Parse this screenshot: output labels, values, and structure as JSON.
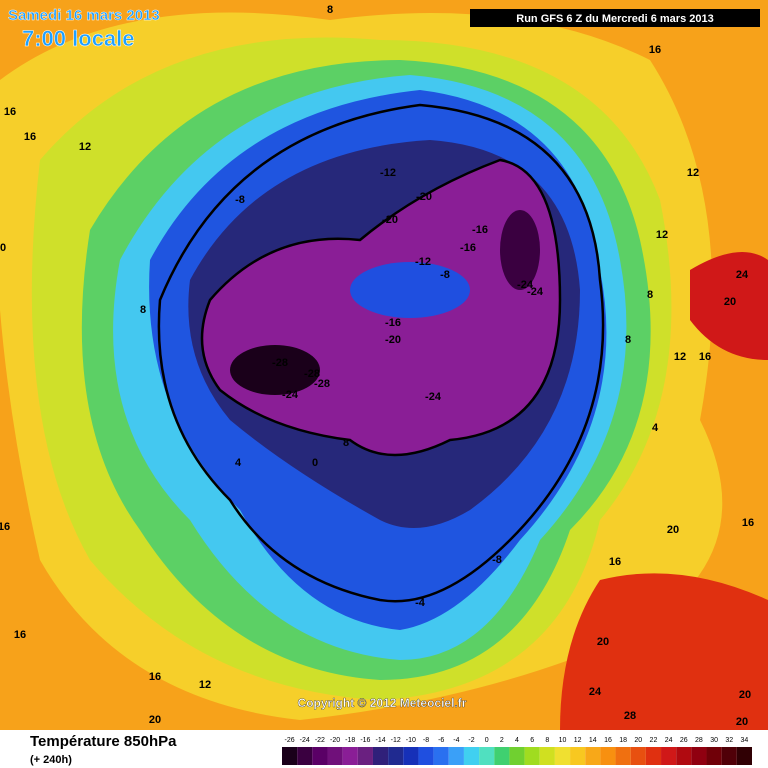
{
  "header": {
    "date": "Samedi 16 mars 2013",
    "time": "7:00 locale",
    "run": "Run GFS 6 Z du Mercredi 6 mars 2013"
  },
  "map_labels": [
    "8",
    "16",
    "16",
    "12",
    "-8",
    "-12",
    "-20",
    "-20",
    "-16",
    "-16",
    "-12",
    "-8",
    "-24",
    "-24",
    "-16",
    "-20",
    "-28",
    "-28",
    "-28",
    "-24",
    "-24",
    "12",
    "12",
    "24",
    "20",
    "8",
    "8",
    "12",
    "16",
    "4",
    "4",
    "0",
    "8",
    "-8",
    "-4",
    "20",
    "16",
    "16",
    "20",
    "24",
    "28",
    "20",
    "20",
    "16",
    "16",
    "16",
    "12",
    "20",
    "8",
    "0",
    "16"
  ],
  "copyright": "Copyright © 2012 Meteociel.fr",
  "footer": {
    "title": "Température 850hPa",
    "subtitle": "(+ 240h)"
  },
  "scale": {
    "labels": [
      "-26",
      "-24",
      "-22",
      "-20",
      "-18",
      "-16",
      "-14",
      "-12",
      "-10",
      "-8",
      "-6",
      "-4",
      "-2",
      "0",
      "2",
      "4",
      "6",
      "8",
      "10",
      "12",
      "14",
      "16",
      "18",
      "20",
      "22",
      "24",
      "26",
      "28",
      "30",
      "32",
      "34"
    ],
    "colors": [
      "#1a001a",
      "#3a0040",
      "#5a0066",
      "#70107a",
      "#8a1e96",
      "#6a2080",
      "#30207a",
      "#202a90",
      "#1630b8",
      "#1f4fe0",
      "#2a70f0",
      "#3aa0f8",
      "#40d0f0",
      "#50e0c0",
      "#40d070",
      "#70d030",
      "#a0dc20",
      "#d0e020",
      "#f0e030",
      "#f8c820",
      "#f8a818",
      "#f89010",
      "#f07010",
      "#e85010",
      "#e03010",
      "#d01818",
      "#b00a10",
      "#900010",
      "#700008",
      "#500008",
      "#300004"
    ]
  }
}
